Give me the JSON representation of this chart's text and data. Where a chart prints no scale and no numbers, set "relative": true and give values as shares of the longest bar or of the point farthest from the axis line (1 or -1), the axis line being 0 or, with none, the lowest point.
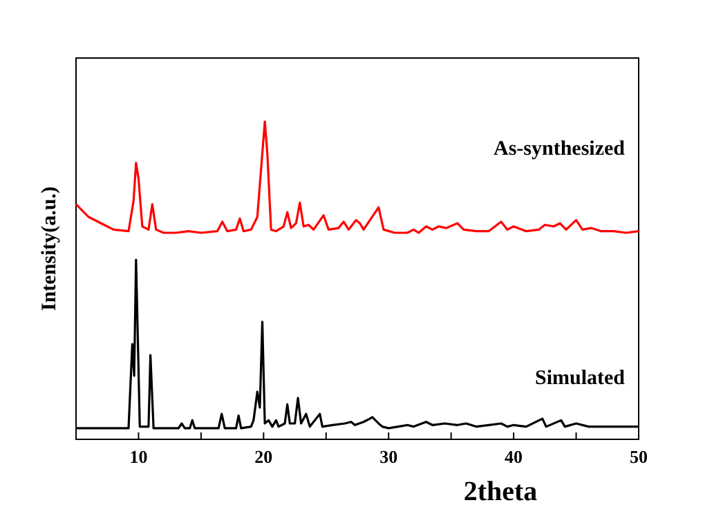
{
  "chart_data": {
    "type": "line",
    "xlabel": "2theta",
    "ylabel": "Intensity(a.u.)",
    "relative": true,
    "xlim": [
      5,
      50
    ],
    "xticks": [
      10,
      {
        "value": 15,
        "label": null
      },
      20,
      {
        "value": 25,
        "label": null
      },
      30,
      {
        "value": 35,
        "label": null
      },
      40,
      {
        "value": 45,
        "label": null
      },
      50
    ],
    "grid": false,
    "series": [
      {
        "name": "As-synthesized",
        "color": "#ff0000",
        "x": [
          5,
          6,
          7,
          8,
          9.2,
          9.6,
          9.8,
          10.0,
          10.3,
          10.8,
          11.1,
          11.4,
          12,
          13,
          14,
          15,
          16.3,
          16.7,
          17.1,
          17.8,
          18.1,
          18.4,
          19,
          19.5,
          19.9,
          20.1,
          20.3,
          20.6,
          21,
          21.6,
          21.9,
          22.2,
          22.6,
          22.9,
          23.2,
          23.6,
          24,
          24.8,
          25.2,
          26,
          26.4,
          26.8,
          27.4,
          27.7,
          28,
          29.2,
          29.6,
          30.5,
          31.5,
          32,
          32.4,
          33,
          33.5,
          34,
          34.6,
          35.5,
          36,
          37,
          38,
          39,
          39.5,
          40,
          41,
          42,
          42.5,
          43.2,
          43.7,
          44.2,
          45,
          45.5,
          46.2,
          47,
          48,
          49,
          50
        ],
        "values": [
          0.74,
          0.7,
          0.68,
          0.66,
          0.655,
          0.75,
          0.87,
          0.82,
          0.67,
          0.66,
          0.74,
          0.66,
          0.65,
          0.65,
          0.655,
          0.65,
          0.655,
          0.685,
          0.655,
          0.66,
          0.695,
          0.655,
          0.66,
          0.7,
          0.9,
          1.0,
          0.9,
          0.66,
          0.655,
          0.67,
          0.715,
          0.665,
          0.68,
          0.745,
          0.67,
          0.675,
          0.66,
          0.705,
          0.66,
          0.665,
          0.685,
          0.66,
          0.69,
          0.68,
          0.66,
          0.73,
          0.66,
          0.65,
          0.65,
          0.66,
          0.65,
          0.67,
          0.66,
          0.67,
          0.665,
          0.68,
          0.66,
          0.655,
          0.655,
          0.685,
          0.66,
          0.67,
          0.655,
          0.66,
          0.675,
          0.67,
          0.68,
          0.66,
          0.69,
          0.66,
          0.665,
          0.655,
          0.655,
          0.65,
          0.655
        ]
      },
      {
        "name": "Simulated",
        "color": "#000000",
        "x": [
          5,
          9.2,
          9.5,
          9.65,
          9.8,
          10.1,
          10.8,
          10.95,
          11.2,
          13.2,
          13.45,
          13.7,
          14.1,
          14.3,
          14.5,
          16.4,
          16.65,
          16.9,
          17.8,
          18.0,
          18.2,
          19,
          19.2,
          19.5,
          19.7,
          19.9,
          20.1,
          20.4,
          20.7,
          21.0,
          21.2,
          21.7,
          21.9,
          22.1,
          22.5,
          22.75,
          23,
          23.4,
          23.7,
          24.5,
          24.7,
          25.5,
          26.5,
          27,
          27.3,
          28,
          28.5,
          28.7,
          29.2,
          29.5,
          30,
          31.5,
          32,
          33,
          33.5,
          34.5,
          35.5,
          36.2,
          37,
          38,
          39,
          39.5,
          40,
          41,
          42.3,
          42.6,
          43.8,
          44.1,
          45,
          46,
          47,
          48,
          49,
          50
        ],
        "values": [
          0.035,
          0.035,
          0.3,
          0.2,
          0.565,
          0.04,
          0.04,
          0.265,
          0.035,
          0.035,
          0.05,
          0.035,
          0.035,
          0.06,
          0.035,
          0.035,
          0.08,
          0.035,
          0.035,
          0.075,
          0.035,
          0.04,
          0.06,
          0.15,
          0.1,
          0.37,
          0.05,
          0.06,
          0.04,
          0.06,
          0.04,
          0.05,
          0.11,
          0.05,
          0.05,
          0.13,
          0.05,
          0.08,
          0.04,
          0.08,
          0.04,
          0.045,
          0.05,
          0.055,
          0.045,
          0.055,
          0.065,
          0.07,
          0.05,
          0.04,
          0.035,
          0.045,
          0.04,
          0.055,
          0.045,
          0.05,
          0.045,
          0.05,
          0.04,
          0.045,
          0.05,
          0.04,
          0.045,
          0.04,
          0.065,
          0.04,
          0.06,
          0.04,
          0.05,
          0.04,
          0.04,
          0.04,
          0.04,
          0.04
        ]
      }
    ]
  }
}
